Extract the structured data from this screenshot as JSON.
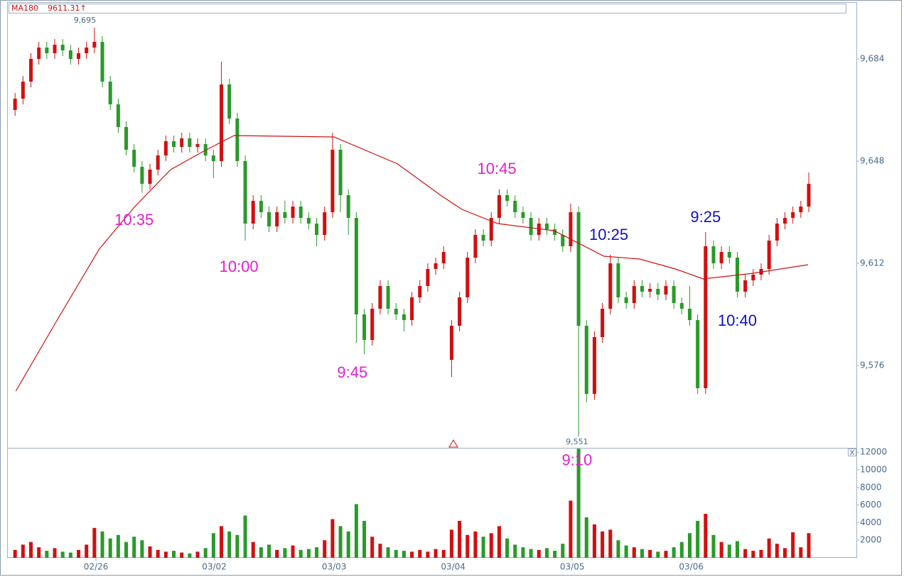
{
  "chart_data": {
    "type": "candlestick",
    "up_color": "#d01010",
    "down_color": "#2a9a2a",
    "open": [
      9666,
      9670,
      9676,
      9684,
      9688,
      9686,
      9689,
      9687,
      9684,
      9686,
      9688,
      9690,
      9676,
      9668,
      9660,
      9652,
      9646,
      9640,
      9645,
      9650,
      9655,
      9653,
      9656,
      9653,
      9654,
      9650,
      9648,
      9675,
      9663,
      9648,
      9626,
      9634,
      9630,
      9625,
      9630,
      9628,
      9632,
      9628,
      9626,
      9622,
      9630,
      9652,
      9636,
      9628,
      9594,
      9585,
      9596,
      9604,
      9596,
      9594,
      9592,
      9600,
      9604,
      9610,
      9612,
      9578,
      9590,
      9600,
      9614,
      9622,
      9620,
      9628,
      9636,
      9634,
      9630,
      9628,
      9622,
      9626,
      9624,
      9622,
      9618,
      9630,
      9590,
      9566,
      9586,
      9596,
      9612,
      9600,
      9598,
      9604,
      9602,
      9603,
      9601,
      9604,
      9598,
      9596,
      9592,
      9568,
      9618,
      9612,
      9616,
      9614,
      9602,
      9606,
      9608,
      9610,
      9620,
      9626,
      9628,
      9630,
      9632
    ],
    "high": [
      9672,
      9678,
      9686,
      9690,
      9690,
      9691,
      9691,
      9689,
      9688,
      9690,
      9695,
      9692,
      9678,
      9670,
      9662,
      9654,
      9648,
      9647,
      9652,
      9657,
      9657,
      9658,
      9658,
      9656,
      9656,
      9652,
      9683,
      9677,
      9665,
      9650,
      9636,
      9636,
      9632,
      9632,
      9634,
      9634,
      9634,
      9630,
      9628,
      9632,
      9658,
      9654,
      9638,
      9630,
      9596,
      9598,
      9606,
      9606,
      9598,
      9596,
      9602,
      9606,
      9612,
      9614,
      9618,
      9592,
      9602,
      9616,
      9624,
      9624,
      9630,
      9638,
      9638,
      9636,
      9632,
      9630,
      9628,
      9628,
      9626,
      9624,
      9633,
      9632,
      9592,
      9588,
      9598,
      9615,
      9614,
      9602,
      9606,
      9606,
      9605,
      9605,
      9606,
      9606,
      9600,
      9604,
      9594,
      9623,
      9620,
      9618,
      9618,
      9616,
      9608,
      9610,
      9612,
      9622,
      9628,
      9630,
      9632,
      9634,
      9644
    ],
    "low": [
      9664,
      9668,
      9674,
      9682,
      9684,
      9684,
      9685,
      9682,
      9682,
      9684,
      9686,
      9674,
      9666,
      9658,
      9650,
      9644,
      9637,
      9638,
      9643,
      9648,
      9651,
      9651,
      9651,
      9651,
      9648,
      9642,
      9646,
      9661,
      9646,
      9620,
      9624,
      9628,
      9623,
      9623,
      9626,
      9626,
      9626,
      9624,
      9618,
      9620,
      9628,
      9630,
      9622,
      9584,
      9580,
      9583,
      9594,
      9594,
      9592,
      9588,
      9590,
      9598,
      9602,
      9608,
      9610,
      9572,
      9588,
      9598,
      9612,
      9618,
      9618,
      9626,
      9632,
      9628,
      9626,
      9620,
      9620,
      9622,
      9620,
      9616,
      9616,
      9551,
      9563,
      9564,
      9584,
      9594,
      9598,
      9596,
      9596,
      9600,
      9600,
      9599,
      9599,
      9596,
      9594,
      9590,
      9566,
      9566,
      9610,
      9610,
      9612,
      9600,
      9600,
      9604,
      9606,
      9608,
      9618,
      9624,
      9626,
      9628,
      9630
    ],
    "close": [
      9670,
      9676,
      9684,
      9688,
      9686,
      9689,
      9687,
      9684,
      9686,
      9688,
      9690,
      9676,
      9668,
      9660,
      9652,
      9646,
      9640,
      9645,
      9650,
      9655,
      9653,
      9656,
      9653,
      9654,
      9650,
      9648,
      9675,
      9663,
      9648,
      9626,
      9634,
      9630,
      9625,
      9630,
      9628,
      9632,
      9628,
      9626,
      9622,
      9630,
      9652,
      9636,
      9628,
      9594,
      9585,
      9596,
      9604,
      9596,
      9594,
      9592,
      9600,
      9604,
      9610,
      9612,
      9616,
      9590,
      9600,
      9614,
      9622,
      9620,
      9628,
      9636,
      9634,
      9630,
      9628,
      9622,
      9626,
      9624,
      9622,
      9618,
      9630,
      9590,
      9566,
      9586,
      9596,
      9612,
      9600,
      9598,
      9604,
      9602,
      9603,
      9601,
      9604,
      9598,
      9596,
      9592,
      9568,
      9618,
      9612,
      9616,
      9614,
      9602,
      9606,
      9608,
      9610,
      9620,
      9626,
      9628,
      9630,
      9632,
      9640
    ],
    "volume": [
      900,
      1500,
      1800,
      1200,
      800,
      1100,
      700,
      600,
      900,
      1500,
      3400,
      3000,
      2200,
      2600,
      1800,
      2400,
      2000,
      1300,
      900,
      700,
      800,
      600,
      500,
      700,
      1100,
      2800,
      3600,
      3000,
      2600,
      4800,
      1800,
      1200,
      1500,
      900,
      1100,
      1400,
      900,
      1000,
      1200,
      2000,
      4400,
      3600,
      3000,
      6100,
      4200,
      2400,
      1600,
      1200,
      900,
      800,
      700,
      900,
      700,
      1000,
      900,
      3200,
      4200,
      2600,
      3000,
      2400,
      2800,
      3600,
      2200,
      1500,
      1200,
      1000,
      900,
      1100,
      800,
      1600,
      6500,
      12400,
      4600,
      3800,
      3000,
      3200,
      2000,
      1400,
      1200,
      1000,
      900,
      700,
      800,
      1200,
      1800,
      2800,
      4200,
      5000,
      2600,
      1800,
      1500,
      1900,
      1000,
      800,
      900,
      2200,
      1600,
      1100,
      2900,
      1200,
      2800
    ],
    "ma": {
      "name": "MA180",
      "last_value": 9611.31,
      "last_value_label": "9611.31↑",
      "color": "#d01010",
      "x": [
        0.1,
        5.3,
        10.6,
        15.1,
        19.6,
        24.1,
        27.6,
        40.2,
        48.2,
        53.6,
        56.3,
        60.8,
        67.9,
        74.2,
        78.7,
        83.2,
        86.7,
        93.0,
        99.9
      ],
      "values": [
        9567,
        9592,
        9617,
        9632,
        9645,
        9652,
        9657,
        9656.5,
        9647,
        9636,
        9631,
        9626,
        9623.5,
        9614.5,
        9613.5,
        9610,
        9606.5,
        9608.5,
        9611.5
      ]
    },
    "xlim": [
      -1,
      106
    ],
    "xticks": [
      {
        "value": 10.2,
        "label": "02/26"
      },
      {
        "value": 25.1,
        "label": "03/02"
      },
      {
        "value": 40.2,
        "label": "03/03"
      },
      {
        "value": 55.2,
        "label": "03/04"
      },
      {
        "value": 70.2,
        "label": "03/05"
      },
      {
        "value": 85.2,
        "label": "03/06"
      }
    ],
    "ylim": [
      9547,
      9704
    ],
    "yticks": [
      {
        "value": 9576,
        "label": "9,576"
      },
      {
        "value": 9612,
        "label": "9,612"
      },
      {
        "value": 9648,
        "label": "9,648"
      },
      {
        "value": 9684,
        "label": "9,684"
      }
    ],
    "volume_ylim": [
      0,
      12500
    ],
    "volume_yticks": [
      2000,
      4000,
      6000,
      8000,
      10000,
      12000
    ],
    "close_button": "X",
    "price_labels": [
      {
        "text": "9,695",
        "x": 8.8,
        "y": 9697.5
      },
      {
        "text": "9,551",
        "x": 70.8,
        "y": 9549
      }
    ],
    "annotations": [
      {
        "text": "10:35",
        "x": 15.0,
        "y": 9627,
        "color": "#e020d0"
      },
      {
        "text": "10:00",
        "x": 28.2,
        "y": 9610.5,
        "color": "#e020d0"
      },
      {
        "text": "9:45",
        "x": 42.5,
        "y": 9573.25,
        "color": "#e020d0"
      },
      {
        "text": "10:45",
        "x": 60.7,
        "y": 9645,
        "color": "#e020d0"
      },
      {
        "text": "10:25",
        "x": 74.8,
        "y": 9621.75,
        "color": "#1010c0"
      },
      {
        "text": "9:25",
        "x": 87.0,
        "y": 9628,
        "color": "#1010c0"
      },
      {
        "text": "10:40",
        "x": 91.0,
        "y": 9591.5,
        "color": "#1010c0"
      }
    ],
    "volume_annotations": [
      {
        "text": "9:10",
        "x": 70.8,
        "y": 11000,
        "color": "#e020d0"
      }
    ]
  }
}
